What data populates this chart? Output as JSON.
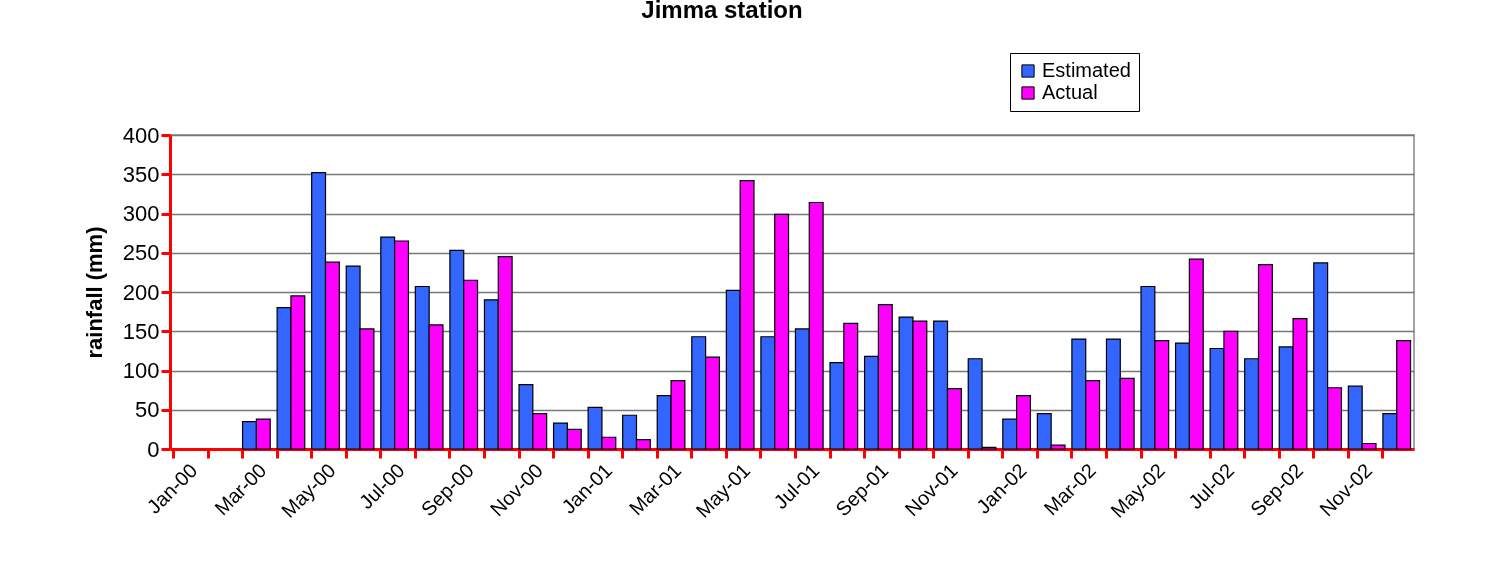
{
  "chart_data": {
    "type": "bar",
    "title": "Jimma station",
    "ylabel": "rainfall (mm)",
    "categories": [
      "Jan-00",
      null,
      "Mar-00",
      null,
      "May-00",
      null,
      "Jul-00",
      null,
      "Sep-00",
      null,
      "Nov-00",
      null,
      "Jan-01",
      null,
      "Mar-01",
      null,
      "May-01",
      null,
      "Jul-01",
      null,
      "Sep-01",
      null,
      "Nov-01",
      null,
      "Jan-02",
      null,
      "Mar-02",
      null,
      "May-02",
      null,
      "Jul-02",
      null,
      "Sep-02",
      null,
      "Nov-02",
      null
    ],
    "series": [
      {
        "name": "Estimated",
        "color": "#3366ff",
        "values": [
          null,
          null,
          35,
          180,
          352,
          233,
          270,
          207,
          253,
          190,
          82,
          33,
          53,
          43,
          68,
          143,
          202,
          143,
          153,
          110,
          118,
          168,
          163,
          115,
          38,
          45,
          140,
          140,
          207,
          135,
          128,
          115,
          130,
          237,
          80,
          45
        ]
      },
      {
        "name": "Actual",
        "color": "#ff00ff",
        "values": [
          null,
          null,
          38,
          195,
          238,
          153,
          265,
          158,
          215,
          245,
          45,
          25,
          15,
          12,
          87,
          117,
          342,
          299,
          314,
          160,
          184,
          163,
          77,
          2,
          68,
          5,
          87,
          90,
          138,
          242,
          150,
          235,
          166,
          78,
          7,
          138
        ]
      }
    ],
    "ylim": [
      0,
      400
    ],
    "yticks": [
      0,
      50,
      100,
      150,
      200,
      250,
      300,
      350,
      400
    ],
    "grid": "y",
    "legend": "top right"
  }
}
